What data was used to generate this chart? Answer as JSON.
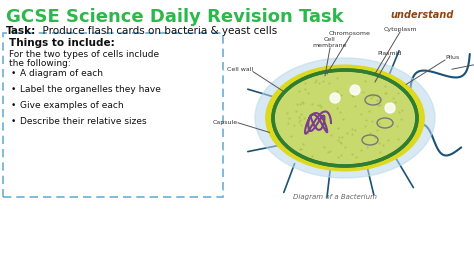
{
  "title": "GCSE Science Daily Revision Task",
  "title_color": "#2db84b",
  "title_fontsize": 13,
  "task_label": "Task:",
  "task_text": "  Produce flash cards on bacteria & yeast cells",
  "task_fontsize": 7.5,
  "box_title": "Things to include:",
  "box_body_line1": "For the two types of cells include",
  "box_body_line2": "the following:",
  "bullets": [
    "A diagram of each",
    "Label the organelles they have",
    "Give examples of each",
    "Describe their relative sizes"
  ],
  "box_border_color": "#6baed6",
  "diagram_caption": "Diagram of a Bacterium",
  "bg_color": "#ffffff",
  "understand_color": "#8B4513",
  "cell_outer_color": "#b8d8ea",
  "cell_wall_color": "#ddd920",
  "cytoplasm_color": "#c8da6e",
  "cell_outline_color": "#2e7d32",
  "flagellum_color": "#1a5276",
  "pili_color": "#1a5276",
  "chromosome_color": "#7b3f8c",
  "label_color": "#333333",
  "label_line_color": "#555555",
  "label_fontsize": 4.5
}
